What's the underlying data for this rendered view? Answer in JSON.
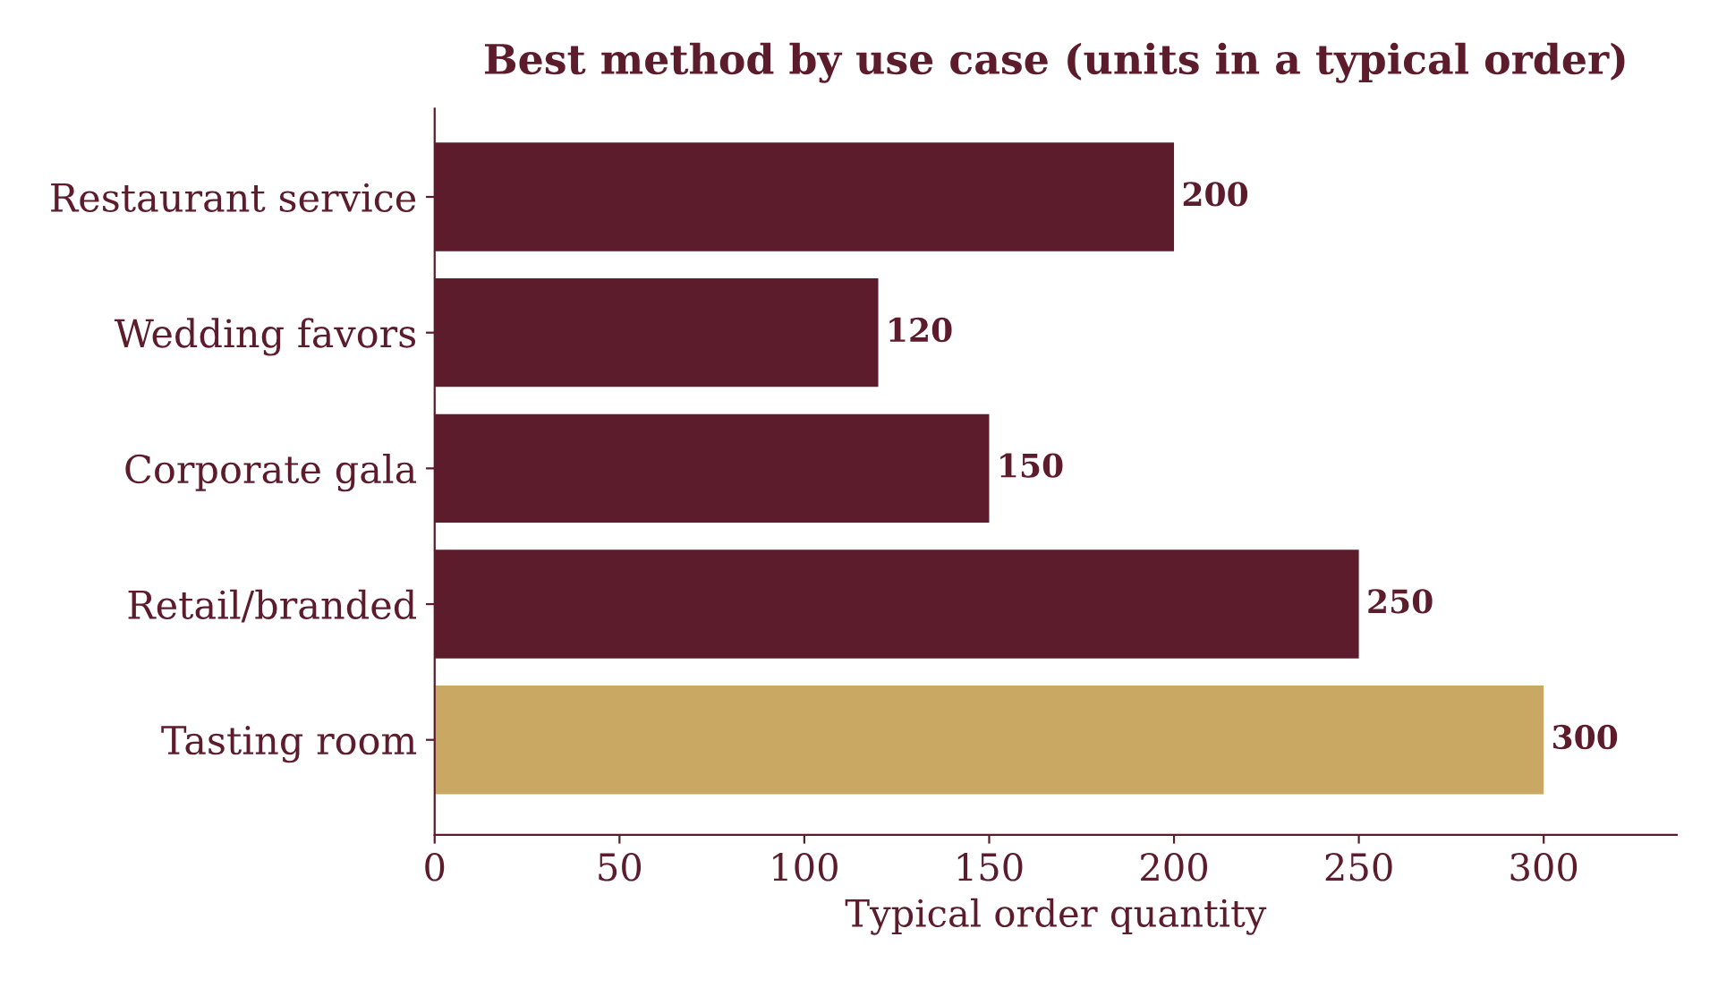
{
  "chart_data": {
    "type": "bar",
    "orientation": "horizontal",
    "title": "Best method by use case (units in a typical order)",
    "xlabel": "Typical order quantity",
    "categories": [
      "Restaurant service",
      "Wedding favors",
      "Corporate gala",
      "Retail/branded",
      "Tasting room"
    ],
    "values": [
      200,
      120,
      150,
      250,
      300
    ],
    "colors": [
      "#5c1c2c",
      "#5c1c2c",
      "#5c1c2c",
      "#5c1c2c",
      "#c8a862"
    ],
    "xlim": [
      0,
      336
    ],
    "xticks": [
      0,
      50,
      100,
      150,
      200,
      250,
      300
    ],
    "data_labels": true,
    "grid": false,
    "legend": false
  }
}
